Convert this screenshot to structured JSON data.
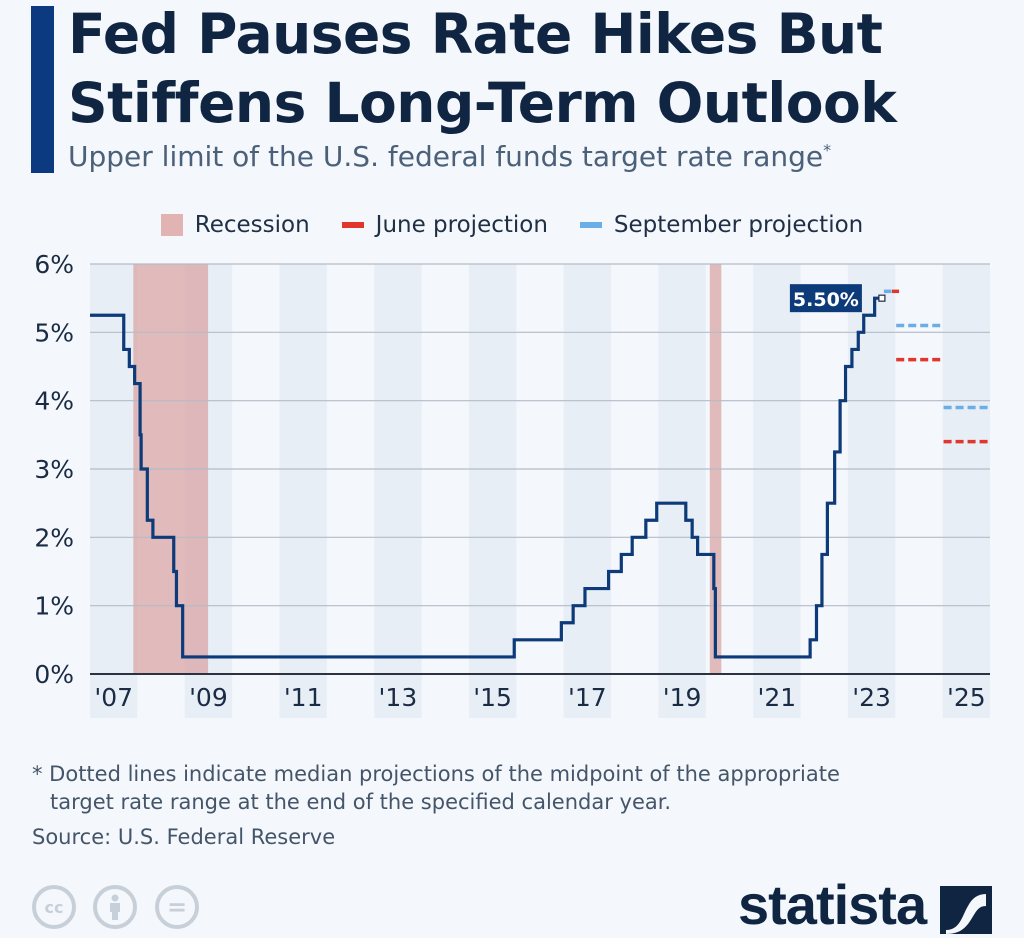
{
  "header": {
    "title_line1": "Fed Pauses Rate Hikes But",
    "title_line2": "Stiffens Long-Term Outlook",
    "subtitle": "Upper limit of the U.S. federal funds target rate range",
    "subtitle_mark": "*"
  },
  "legend": [
    {
      "label": "Recession",
      "color": "#e2b3b3"
    },
    {
      "label": "June projection",
      "color": "#e0362c"
    },
    {
      "label": "September projection",
      "color": "#6aaee8"
    }
  ],
  "chart_data": {
    "type": "line",
    "step": true,
    "title": "Upper limit of the U.S. federal funds target rate range",
    "xlim": [
      "2007-01-01",
      "2026-01-01"
    ],
    "ylim": [
      0,
      6
    ],
    "y_ticks": [
      {
        "v": 0,
        "label": "0%"
      },
      {
        "v": 1,
        "label": "1%"
      },
      {
        "v": 2,
        "label": "2%"
      },
      {
        "v": 3,
        "label": "3%"
      },
      {
        "v": 4,
        "label": "4%"
      },
      {
        "v": 5,
        "label": "5%"
      },
      {
        "v": 6,
        "label": "6%"
      }
    ],
    "x_ticks": [
      {
        "year": 2007,
        "label": "'07"
      },
      {
        "year": 2009,
        "label": "'09"
      },
      {
        "year": 2011,
        "label": "'11"
      },
      {
        "year": 2013,
        "label": "'13"
      },
      {
        "year": 2015,
        "label": "'15"
      },
      {
        "year": 2017,
        "label": "'17"
      },
      {
        "year": 2019,
        "label": "'19"
      },
      {
        "year": 2021,
        "label": "'21"
      },
      {
        "year": 2023,
        "label": "'23"
      },
      {
        "year": 2025,
        "label": "'25"
      }
    ],
    "grid": true,
    "legend_position": "top",
    "line_color": "#0d3a78",
    "series": [
      {
        "points": [
          [
            "2007-01-01",
            5.25
          ],
          [
            "2007-09-18",
            4.75
          ],
          [
            "2007-10-31",
            4.5
          ],
          [
            "2007-12-11",
            4.25
          ],
          [
            "2008-01-22",
            3.5
          ],
          [
            "2008-01-30",
            3.0
          ],
          [
            "2008-03-18",
            2.25
          ],
          [
            "2008-04-30",
            2.0
          ],
          [
            "2008-10-08",
            1.5
          ],
          [
            "2008-10-29",
            1.0
          ],
          [
            "2008-12-16",
            0.25
          ],
          [
            "2015-12-16",
            0.5
          ],
          [
            "2016-12-14",
            0.75
          ],
          [
            "2017-03-15",
            1.0
          ],
          [
            "2017-06-14",
            1.25
          ],
          [
            "2017-12-13",
            1.5
          ],
          [
            "2018-03-21",
            1.75
          ],
          [
            "2018-06-13",
            2.0
          ],
          [
            "2018-09-26",
            2.25
          ],
          [
            "2018-12-19",
            2.5
          ],
          [
            "2019-07-31",
            2.25
          ],
          [
            "2019-09-18",
            2.0
          ],
          [
            "2019-10-30",
            1.75
          ],
          [
            "2020-03-03",
            1.25
          ],
          [
            "2020-03-15",
            0.25
          ],
          [
            "2022-03-16",
            0.5
          ],
          [
            "2022-05-04",
            1.0
          ],
          [
            "2022-06-15",
            1.75
          ],
          [
            "2022-07-27",
            2.5
          ],
          [
            "2022-09-21",
            3.25
          ],
          [
            "2022-11-02",
            4.0
          ],
          [
            "2022-12-14",
            4.5
          ],
          [
            "2023-02-01",
            4.75
          ],
          [
            "2023-03-22",
            5.0
          ],
          [
            "2023-05-03",
            5.25
          ],
          [
            "2023-07-26",
            5.5
          ],
          [
            "2023-09-20",
            5.5
          ]
        ]
      }
    ],
    "last_value_label": "5.50%",
    "recessions": [
      [
        "2007-12-01",
        "2009-06-30"
      ],
      [
        "2020-02-01",
        "2020-04-30"
      ]
    ],
    "projections": {
      "june": {
        "color": "#e0362c",
        "values": [
          {
            "year": 2023,
            "value": 5.6
          },
          {
            "year": 2024,
            "value": 4.6
          },
          {
            "year": 2025,
            "value": 3.4
          }
        ]
      },
      "september": {
        "color": "#6aaee8",
        "values": [
          {
            "year": 2023,
            "value": 5.6
          },
          {
            "year": 2024,
            "value": 5.1
          },
          {
            "year": 2025,
            "value": 3.9
          }
        ]
      }
    }
  },
  "footer": {
    "note_line1": "* Dotted lines indicate median projections of the midpoint of the appropriate",
    "note_line2": "target rate range at the end of the specified calendar year.",
    "source": "Source: U.S. Federal Reserve",
    "cc_label": "cc",
    "eq_label": "=",
    "logo": "statista"
  }
}
